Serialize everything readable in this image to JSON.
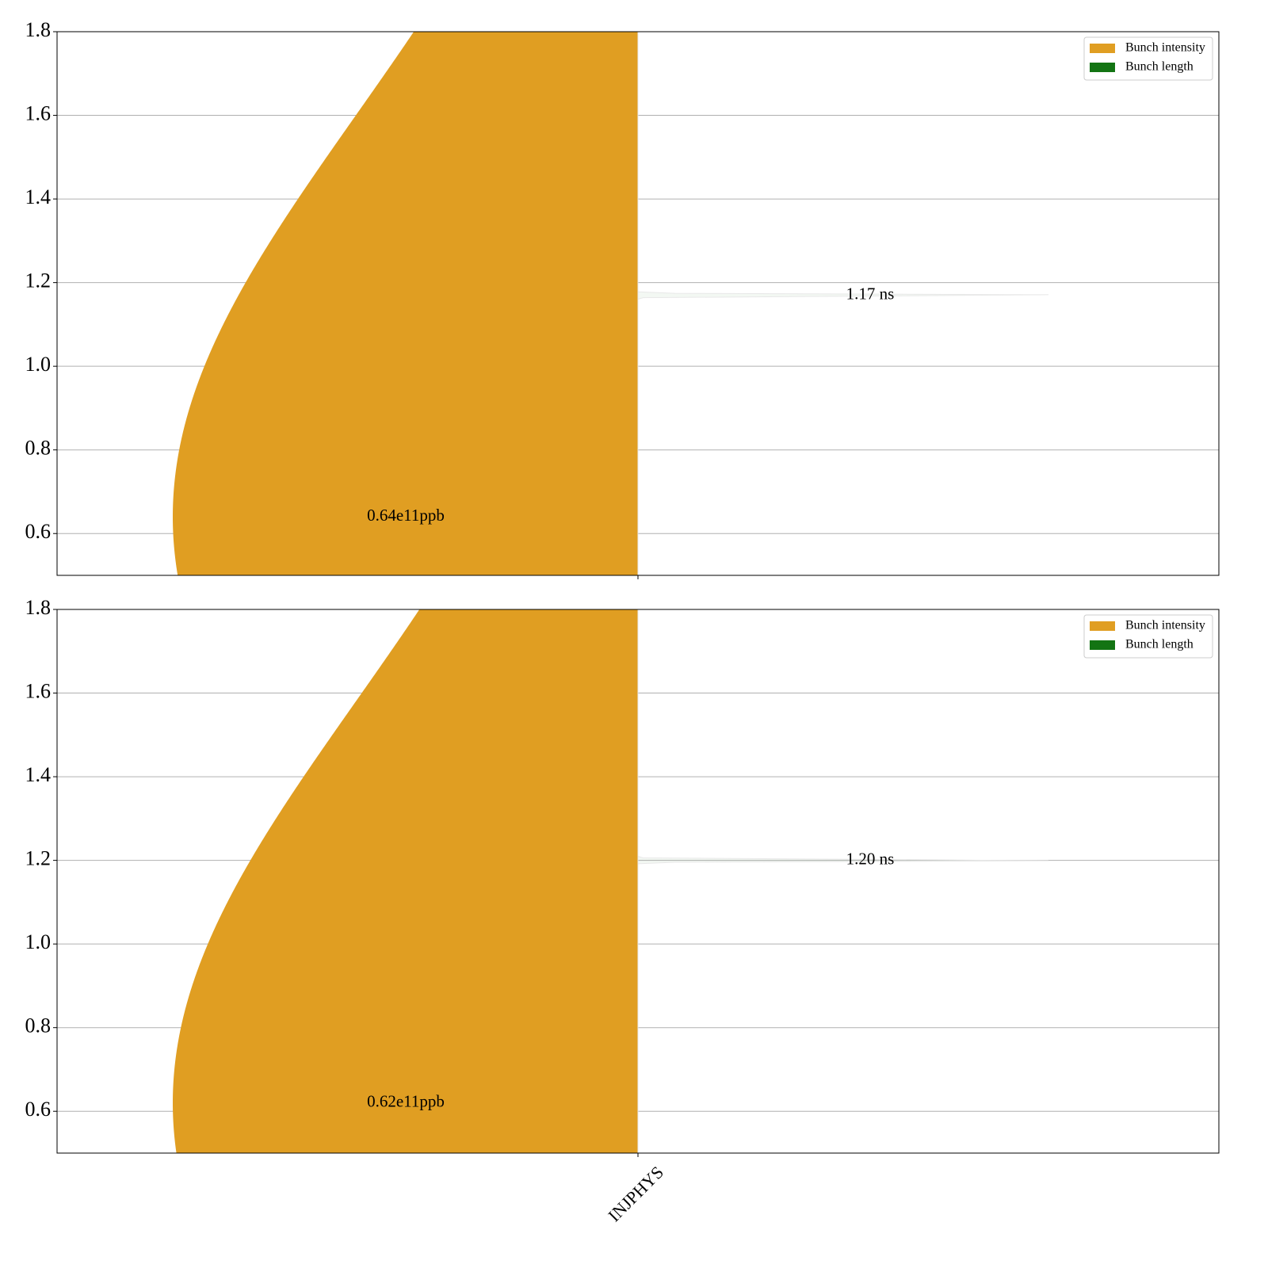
{
  "chart_data": [
    {
      "type": "violin",
      "categories": [
        null
      ],
      "series": [
        {
          "name": "Bunch intensity",
          "color": "#e09e22",
          "values": [
            0.64
          ],
          "value_labels": [
            "0.64e11ppb"
          ]
        },
        {
          "name": "Bunch length",
          "color": "#137413",
          "values": [
            1.17
          ],
          "value_labels": [
            "1.17 ns"
          ]
        }
      ],
      "ylim": [
        0.5,
        1.8
      ],
      "yticks": [
        0.6,
        0.8,
        {
          "value": 1,
          "label": "1.0"
        },
        1.2,
        1.4,
        1.6,
        1.8
      ],
      "grid": true,
      "legend": "upper right"
    },
    {
      "type": "violin",
      "categories": [
        "INJPHYS"
      ],
      "series": [
        {
          "name": "Bunch intensity",
          "color": "#e09e22",
          "values": [
            0.62
          ],
          "value_labels": [
            "0.62e11ppb"
          ]
        },
        {
          "name": "Bunch length",
          "color": "#137413",
          "values": [
            1.2
          ],
          "value_labels": [
            "1.20 ns"
          ]
        }
      ],
      "ylim": [
        0.5,
        1.8
      ],
      "yticks": [
        0.6,
        0.8,
        {
          "value": 1,
          "label": "1.0"
        },
        1.2,
        1.4,
        1.6,
        1.8
      ],
      "grid": true,
      "legend": "upper right"
    }
  ]
}
